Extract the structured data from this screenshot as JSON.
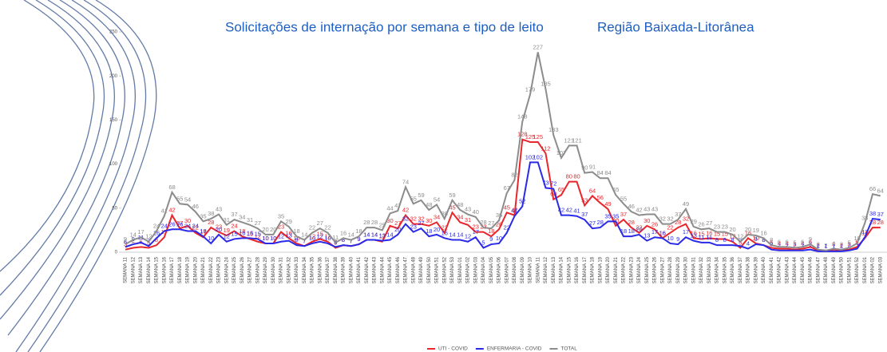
{
  "chart_data": {
    "type": "line",
    "title": "Solicitações de internação por semana e tipo de leito",
    "subtitle": "Região Baixada-Litorânea",
    "categories": [
      "SEMANA 11",
      "SEMANA 12",
      "SEMANA 13",
      "SEMANA 14",
      "SEMANA 15",
      "SEMANA 16",
      "SEMANA 17",
      "SEMANA 18",
      "SEMANA 19",
      "SEMANA 20",
      "SEMANA 21",
      "SEMANA 22",
      "SEMANA 23",
      "SEMANA 24",
      "SEMANA 25",
      "SEMANA 26",
      "SEMANA 27",
      "SEMANA 28",
      "SEMANA 29",
      "SEMANA 30",
      "SEMANA 31",
      "SEMANA 32",
      "SEMANA 33",
      "SEMANA 34",
      "SEMANA 35",
      "SEMANA 36",
      "SEMANA 37",
      "SEMANA 38",
      "SEMANA 39",
      "SEMANA 40",
      "SEMANA 41",
      "SEMANA 42",
      "SEMANA 43",
      "SEMANA 44",
      "SEMANA 45",
      "SEMANA 46",
      "SEMANA 47",
      "SEMANA 48",
      "SEMANA 49",
      "SEMANA 50",
      "SEMANA 51",
      "SEMANA 52",
      "SEMANA 53",
      "SEMANA 01",
      "SEMANA 02",
      "SEMANA 03",
      "SEMANA 04",
      "SEMANA 05",
      "SEMANA 06",
      "SEMANA 07",
      "SEMANA 08",
      "SEMANA 09",
      "SEMANA 10",
      "SEMANA 11",
      "SEMANA 12",
      "SEMANA 13",
      "SEMANA 14",
      "SEMANA 15",
      "SEMANA 16",
      "SEMANA 17",
      "SEMANA 18",
      "SEMANA 19",
      "SEMANA 20",
      "SEMANA 21",
      "SEMANA 22",
      "SEMANA 23",
      "SEMANA 24",
      "SEMANA 25",
      "SEMANA 26",
      "SEMANA 27",
      "SEMANA 28",
      "SEMANA 29",
      "SEMANA 30",
      "SEMANA 31",
      "SEMANA 32",
      "SEMANA 33",
      "SEMANA 34",
      "SEMANA 35",
      "SEMANA 36",
      "SEMANA 37",
      "SEMANA 38",
      "SEMANA 39",
      "SEMANA 40",
      "SEMANA 41",
      "SEMANA 42",
      "SEMANA 43",
      "SEMANA 44",
      "SEMANA 45",
      "SEMANA 46",
      "SEMANA 47",
      "SEMANA 48",
      "SEMANA 49",
      "SEMANA 50",
      "SEMANA 51",
      "SEMANA 52",
      "SEMANA 01",
      "SEMANA 02",
      "SEMANA 03"
    ],
    "series": [
      {
        "name": "UTI - COVID",
        "color": "#e8262b",
        "values": [
          3,
          5,
          6,
          5,
          8,
          17,
          42,
          27,
          30,
          22,
          17,
          28,
          23,
          19,
          24,
          18,
          15,
          12,
          10,
          10,
          23,
          16,
          10,
          7,
          12,
          15,
          12,
          5,
          8,
          7,
          9,
          14,
          14,
          12,
          30,
          27,
          42,
          32,
          32,
          30,
          34,
          22,
          45,
          34,
          31,
          23,
          23,
          18,
          26,
          45,
          42,
          128,
          125,
          125,
          112,
          60,
          65,
          80,
          80,
          53,
          64,
          56,
          49,
          30,
          37,
          28,
          22,
          30,
          26,
          16,
          22,
          28,
          32,
          16,
          15,
          16,
          15,
          15,
          12,
          5,
          16,
          10,
          8,
          5,
          4,
          4,
          3,
          4,
          6,
          2,
          1,
          3,
          2,
          3,
          6,
          16,
          28,
          28
        ]
      },
      {
        "name": "ENFERMARIA - COVID",
        "color": "#2a2ae8",
        "values": [
          6,
          9,
          11,
          7,
          16,
          24,
          26,
          26,
          24,
          24,
          18,
          10,
          20,
          12,
          15,
          16,
          16,
          15,
          10,
          10,
          12,
          13,
          8,
          7,
          10,
          12,
          10,
          6,
          8,
          7,
          9,
          14,
          14,
          13,
          14,
          20,
          32,
          23,
          27,
          18,
          20,
          16,
          14,
          14,
          12,
          17,
          5,
          9,
          10,
          22,
          41,
          52,
          102,
          102,
          73,
          72,
          42,
          42,
          41,
          37,
          27,
          28,
          35,
          35,
          18,
          18,
          20,
          13,
          17,
          16,
          10,
          9,
          17,
          13,
          11,
          11,
          8,
          8,
          8,
          7,
          4,
          9,
          8,
          3,
          2,
          2,
          2,
          2,
          3,
          1,
          1,
          1,
          1,
          2,
          4,
          17,
          38,
          37
        ]
      },
      {
        "name": "TOTAL",
        "color": "#8c8c8c",
        "values": [
          9,
          14,
          17,
          12,
          24,
          41,
          68,
          55,
          54,
          46,
          35,
          38,
          43,
          31,
          37,
          34,
          31,
          27,
          20,
          20,
          35,
          29,
          18,
          14,
          22,
          27,
          22,
          11,
          16,
          14,
          18,
          28,
          28,
          25,
          44,
          47,
          74,
          55,
          59,
          48,
          54,
          38,
          59,
          48,
          43,
          40,
          28,
          27,
          36,
          67,
          82,
          148,
          179,
          227,
          185,
          133,
          107,
          121,
          121,
          90,
          91,
          84,
          84,
          65,
          55,
          46,
          42,
          43,
          43,
          32,
          32,
          37,
          49,
          29,
          26,
          27,
          23,
          23,
          20,
          12,
          20,
          19,
          16,
          8,
          6,
          6,
          5,
          6,
          9,
          3,
          2,
          4,
          3,
          5,
          10,
          33,
          66,
          64
        ]
      }
    ],
    "ylim": [
      0,
      250
    ],
    "yticks": [
      0,
      50,
      100,
      150,
      200,
      250
    ]
  }
}
